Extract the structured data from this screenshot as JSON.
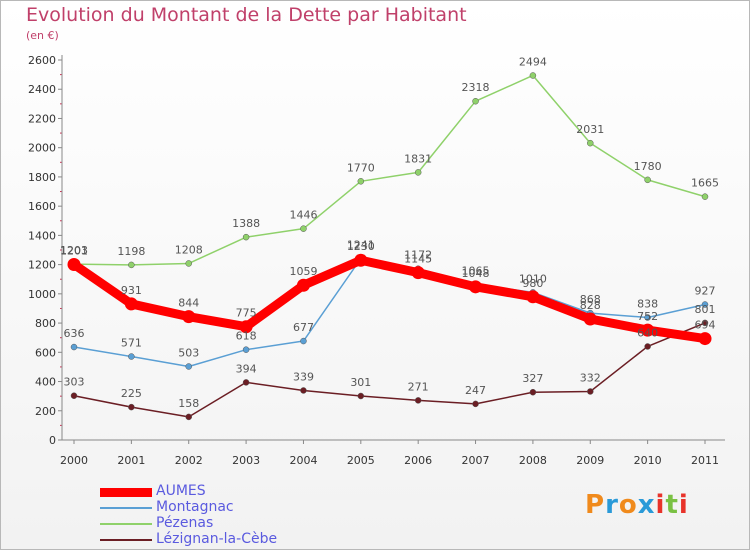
{
  "title": "Evolution du Montant de la Dette par Habitant",
  "subtitle": "(en €)",
  "logo": {
    "letters": [
      "P",
      "r",
      "o",
      "x",
      "i",
      "t",
      "i"
    ],
    "colors": [
      "#f08a1c",
      "#2a9ad8",
      "#f08a1c",
      "#2a9ad8",
      "#e8332a",
      "#7ac143",
      "#e8332a"
    ]
  },
  "chart_data": {
    "type": "line",
    "x": [
      "2000",
      "2001",
      "2002",
      "2003",
      "2004",
      "2005",
      "2006",
      "2007",
      "2008",
      "2009",
      "2010",
      "2011"
    ],
    "ylim": [
      0,
      2600
    ],
    "yticks": [
      "0",
      "200",
      "400",
      "600",
      "800",
      "1000",
      "1200",
      "1400",
      "1600",
      "1800",
      "2000",
      "2200",
      "2400",
      "2600"
    ],
    "grid": false,
    "legend_position": "bottom-left",
    "series": [
      {
        "name": "Pézenas",
        "color": "#8fd16a",
        "emphasis": false,
        "values": [
          1203,
          1198,
          1208,
          1388,
          1446,
          1770,
          1831,
          2318,
          2494,
          2031,
          1780,
          1665
        ],
        "labels": [
          "1203",
          "1198",
          "1208",
          "1388",
          "1446",
          "1770",
          "1831",
          "2318",
          "2494",
          "2031",
          "1780",
          "1665"
        ]
      },
      {
        "name": "Montagnac",
        "color": "#5a9fd4",
        "emphasis": false,
        "values": [
          636,
          571,
          503,
          618,
          677,
          1241,
          1172,
          1065,
          1010,
          868,
          838,
          927
        ],
        "labels": [
          "636",
          "571",
          "503",
          "618",
          "677",
          "1241",
          "1172",
          "1065",
          "1010",
          "868",
          "838",
          "927"
        ]
      },
      {
        "name": "Lézignan-la-Cèbe",
        "color": "#6b1e24",
        "emphasis": false,
        "values": [
          303,
          225,
          158,
          394,
          339,
          301,
          271,
          247,
          327,
          332,
          640,
          801
        ],
        "labels": [
          "303",
          "225",
          "158",
          "394",
          "339",
          "301",
          "271",
          "247",
          "327",
          "332",
          "640",
          "801"
        ]
      },
      {
        "name": "AUMES",
        "color": "#ff0000",
        "emphasis": true,
        "values": [
          1201,
          931,
          844,
          775,
          1059,
          1230,
          1145,
          1048,
          980,
          828,
          752,
          694
        ],
        "labels": [
          "1201",
          "931",
          "844",
          "775",
          "1059",
          "1230",
          "1145",
          "1048",
          "980",
          "828",
          "752",
          "694"
        ]
      }
    ]
  }
}
